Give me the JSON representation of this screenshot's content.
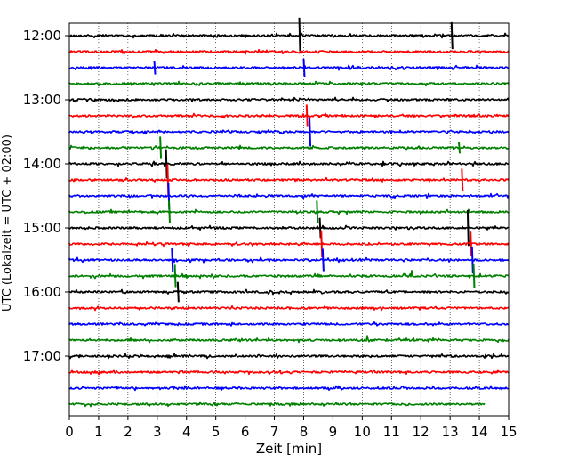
{
  "chart_data": {
    "type": "line",
    "title": "",
    "xlabel": "Zeit  [min]",
    "ylabel": "UTC (Lokalzeit = UTC + 02:00)",
    "xlim": [
      0,
      15
    ],
    "xticks": [
      "0",
      "1",
      "2",
      "3",
      "4",
      "5",
      "6",
      "7",
      "8",
      "9",
      "10",
      "11",
      "12",
      "13",
      "14",
      "15"
    ],
    "ytick_labels": [
      "12:00",
      "13:00",
      "14:00",
      "15:00",
      "16:00",
      "17:00"
    ],
    "grid": "vertical dotted",
    "trace_interval_minutes": 15,
    "color_cycle": [
      "#000000",
      "#ff0000",
      "#0000ff",
      "#008000"
    ],
    "traces": [
      {
        "start": "12:00",
        "spikes": [
          {
            "t": 7.85,
            "amp": 1.6
          },
          {
            "t": 13.05,
            "amp": 1.2
          }
        ]
      },
      {
        "start": "12:15",
        "spikes": []
      },
      {
        "start": "12:30",
        "spikes": [
          {
            "t": 2.9,
            "amp": 0.6
          },
          {
            "t": 8.0,
            "amp": 0.8
          }
        ]
      },
      {
        "start": "12:45",
        "spikes": []
      },
      {
        "start": "13:00",
        "spikes": []
      },
      {
        "start": "13:15",
        "spikes": [
          {
            "t": 8.1,
            "amp": 1.0
          }
        ]
      },
      {
        "start": "13:30",
        "spikes": [
          {
            "t": 8.2,
            "amp": 1.3
          }
        ]
      },
      {
        "start": "13:45",
        "spikes": [
          {
            "t": 3.1,
            "amp": 1.0
          },
          {
            "t": 13.3,
            "amp": 0.5
          }
        ]
      },
      {
        "start": "14:00",
        "spikes": [
          {
            "t": 3.3,
            "amp": 1.3
          }
        ]
      },
      {
        "start": "14:15",
        "spikes": [
          {
            "t": 3.35,
            "amp": 1.4
          },
          {
            "t": 13.4,
            "amp": 1.0
          }
        ]
      },
      {
        "start": "14:30",
        "spikes": [
          {
            "t": 3.38,
            "amp": 1.2
          }
        ]
      },
      {
        "start": "14:45",
        "spikes": [
          {
            "t": 3.4,
            "amp": 1.0
          },
          {
            "t": 8.45,
            "amp": 1.0
          }
        ]
      },
      {
        "start": "15:00",
        "spikes": [
          {
            "t": 8.55,
            "amp": 0.9
          },
          {
            "t": 13.6,
            "amp": 1.6
          }
        ]
      },
      {
        "start": "15:15",
        "spikes": [
          {
            "t": 8.6,
            "amp": 1.2
          },
          {
            "t": 13.7,
            "amp": 1.1
          }
        ]
      },
      {
        "start": "15:30",
        "spikes": [
          {
            "t": 3.5,
            "amp": 1.1
          },
          {
            "t": 8.65,
            "amp": 1.0
          },
          {
            "t": 13.75,
            "amp": 1.2
          }
        ]
      },
      {
        "start": "15:45",
        "spikes": [
          {
            "t": 3.6,
            "amp": 1.0
          },
          {
            "t": 13.8,
            "amp": 1.1
          }
        ]
      },
      {
        "start": "16:00",
        "spikes": [
          {
            "t": 3.7,
            "amp": 0.9
          }
        ]
      },
      {
        "start": "16:15",
        "spikes": []
      },
      {
        "start": "16:30",
        "spikes": []
      },
      {
        "start": "16:45",
        "spikes": []
      },
      {
        "start": "17:00",
        "spikes": []
      },
      {
        "start": "17:15",
        "spikes": []
      },
      {
        "start": "17:30",
        "spikes": []
      },
      {
        "start": "17:45",
        "end_min": 14.2,
        "spikes": []
      }
    ]
  }
}
